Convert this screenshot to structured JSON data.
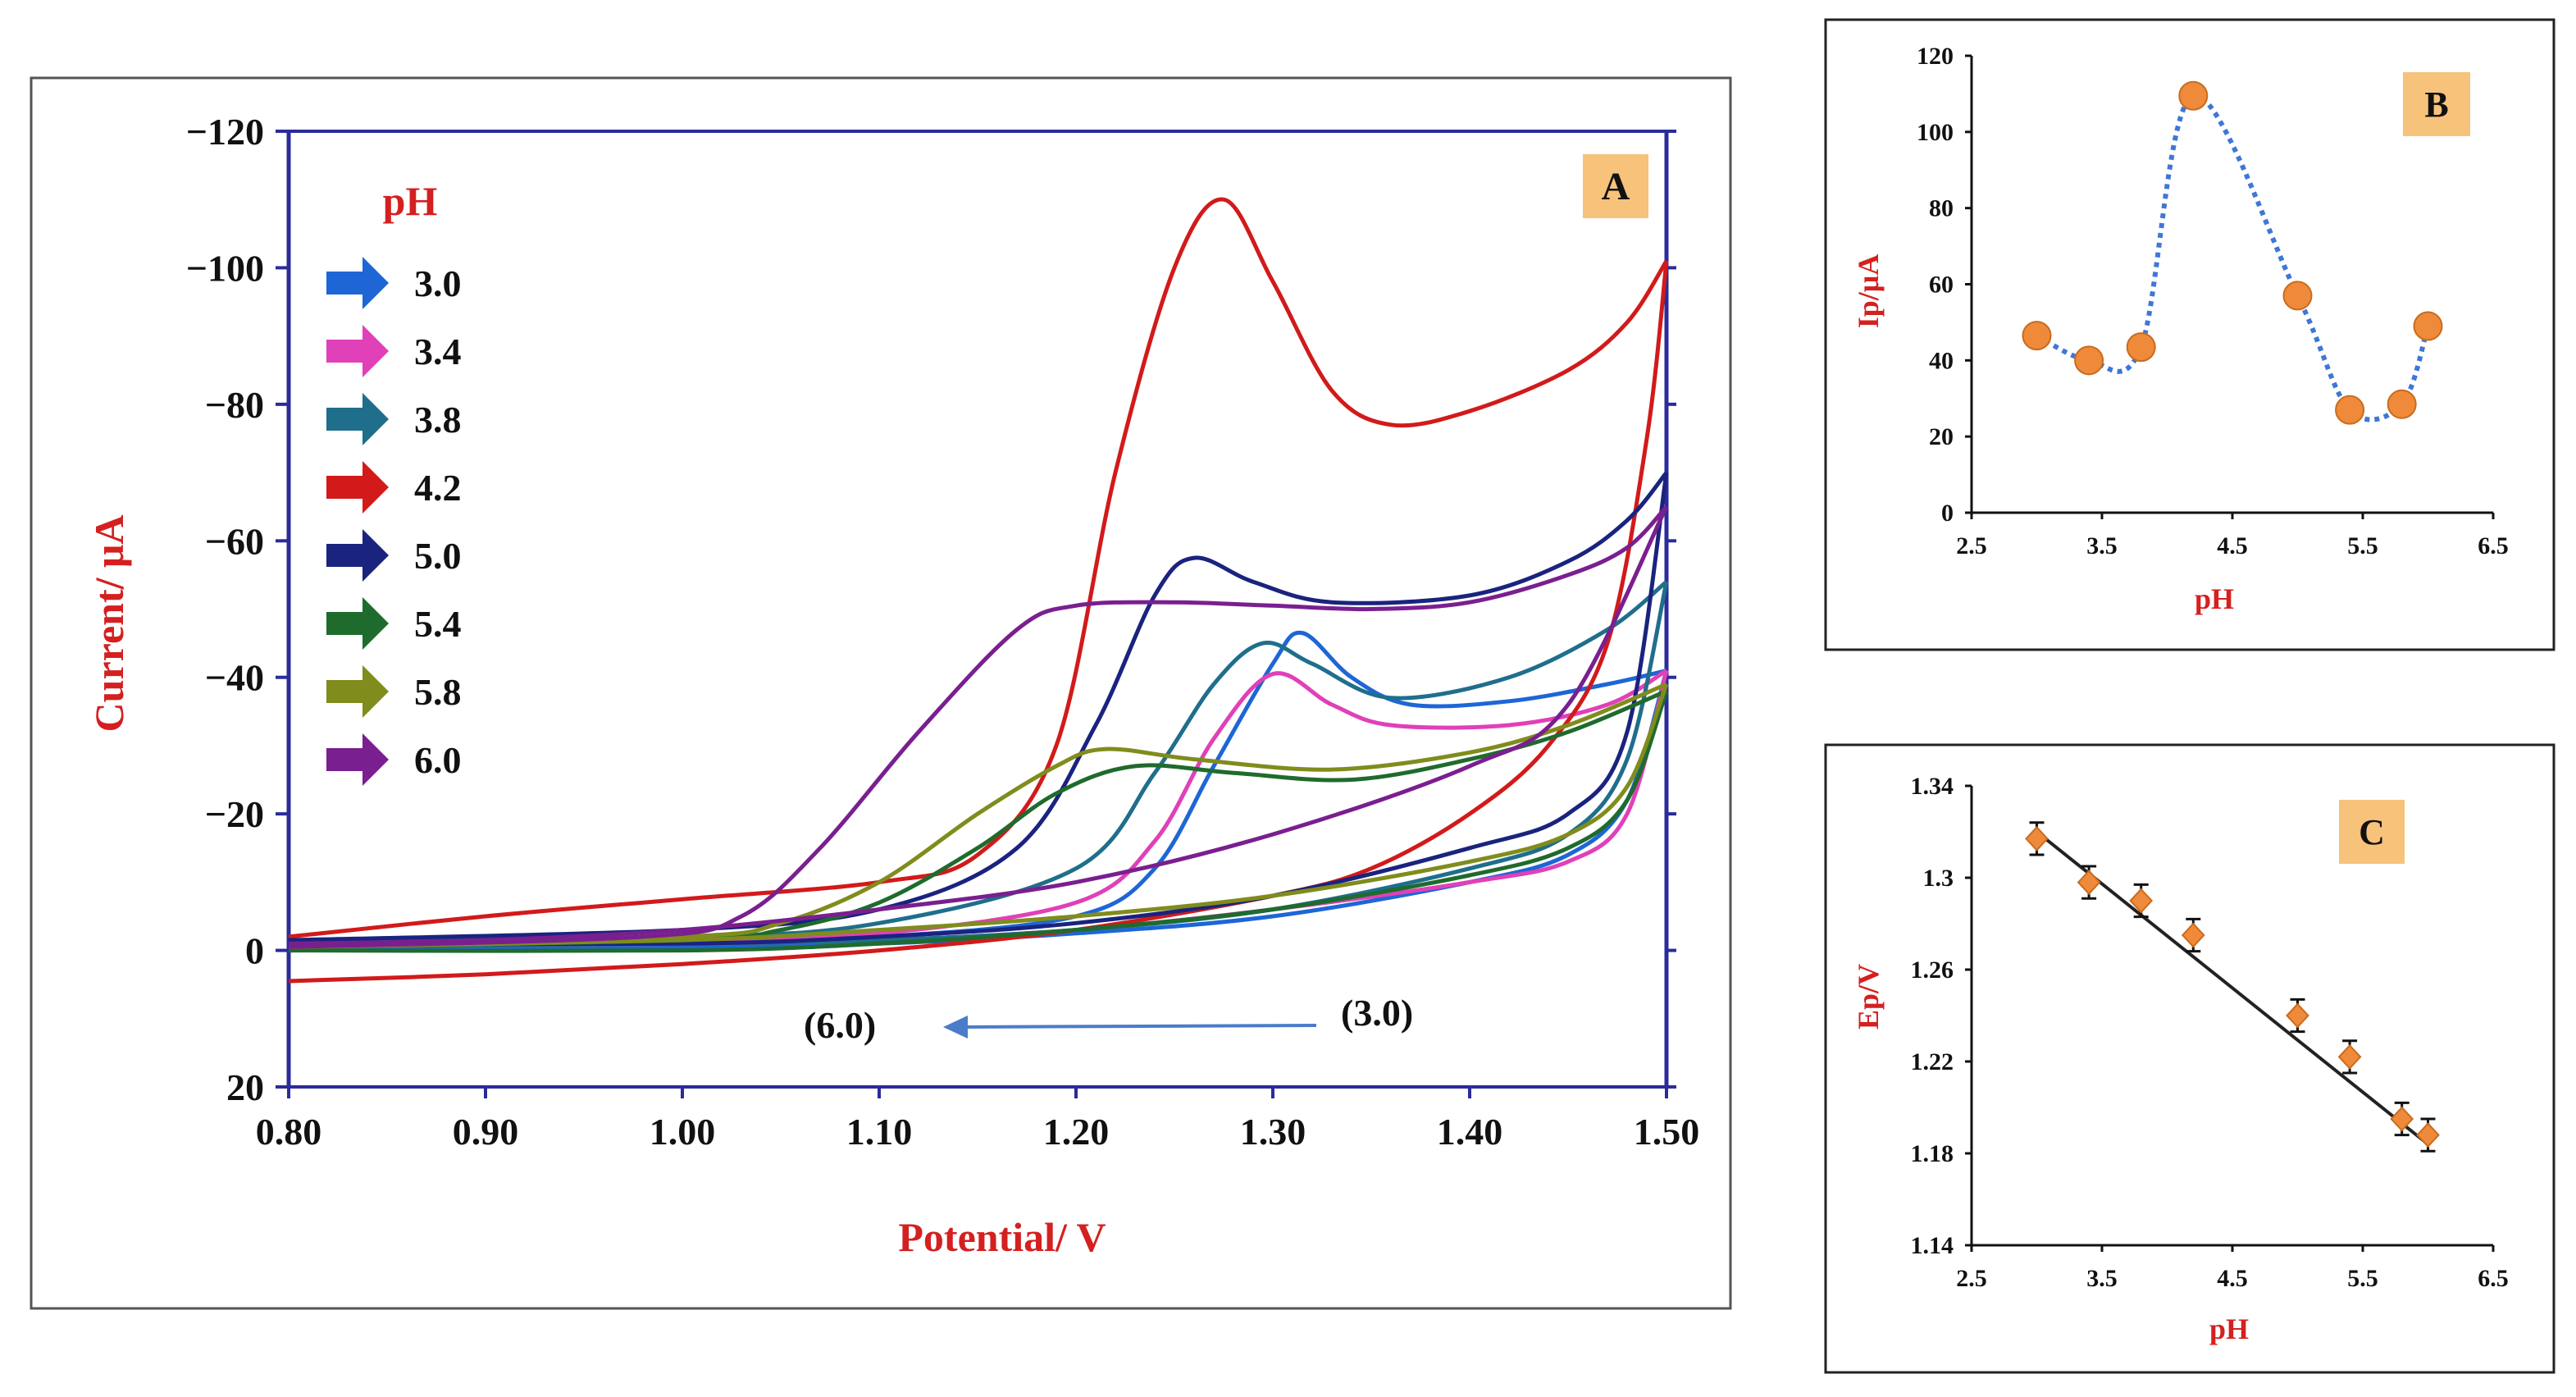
{
  "colors": {
    "label_red": "#d42020",
    "axis_blue": "#2b2b9b",
    "badge_fill": "#f7c27a",
    "marker_orange": "#ee8a3a",
    "dotted_blue": "#3e77d6",
    "arrow_blue": "#4a7cc9",
    "fit_line": "#222222"
  },
  "chart_data": [
    {
      "id": "A",
      "type": "line",
      "badge": "A",
      "xlabel": "Potential/ V",
      "ylabel": "Current/ μA",
      "xlim": [
        0.8,
        1.5
      ],
      "ylim": [
        20,
        -120
      ],
      "y_inverted": true,
      "x_ticks": [
        "0.80",
        "0.90",
        "1.00",
        "1.10",
        "1.20",
        "1.30",
        "1.40",
        "1.50"
      ],
      "y_ticks": [
        "-120",
        "-100",
        "-80",
        "-60",
        "-40",
        "-20",
        "0",
        "20"
      ],
      "legend_title": "pH",
      "annotation": {
        "from": "(3.0)",
        "to": "(6.0)"
      },
      "series": [
        {
          "name": "3.0",
          "color": "#1e66d6",
          "peak_E": 1.315,
          "peak_I": -46.5,
          "fwd": [
            [
              0.8,
              -1
            ],
            [
              1.0,
              -1.5
            ],
            [
              1.1,
              -2
            ],
            [
              1.2,
              -5
            ],
            [
              1.24,
              -12
            ],
            [
              1.27,
              -27
            ],
            [
              1.3,
              -42
            ],
            [
              1.315,
              -46.5
            ],
            [
              1.34,
              -40
            ],
            [
              1.37,
              -36
            ],
            [
              1.42,
              -36.5
            ],
            [
              1.47,
              -39
            ],
            [
              1.5,
              -41
            ]
          ],
          "rev": [
            [
              1.5,
              -41
            ],
            [
              1.48,
              -22
            ],
            [
              1.45,
              -14
            ],
            [
              1.4,
              -10
            ],
            [
              1.3,
              -5
            ],
            [
              1.2,
              -2.5
            ],
            [
              1.1,
              -1
            ],
            [
              1.0,
              -0.5
            ],
            [
              0.8,
              0
            ]
          ]
        },
        {
          "name": "3.4",
          "color": "#e040b8",
          "peak_E": 1.3,
          "peak_I": -40.5,
          "fwd": [
            [
              0.8,
              -1
            ],
            [
              1.0,
              -1.5
            ],
            [
              1.1,
              -2.5
            ],
            [
              1.2,
              -7
            ],
            [
              1.24,
              -16
            ],
            [
              1.27,
              -31
            ],
            [
              1.3,
              -40.5
            ],
            [
              1.33,
              -36
            ],
            [
              1.36,
              -33
            ],
            [
              1.42,
              -33
            ],
            [
              1.47,
              -36
            ],
            [
              1.5,
              -41
            ]
          ],
          "rev": [
            [
              1.5,
              -41
            ],
            [
              1.48,
              -20
            ],
            [
              1.45,
              -13
            ],
            [
              1.4,
              -10
            ],
            [
              1.3,
              -6
            ],
            [
              1.2,
              -3
            ],
            [
              1.1,
              -1.5
            ],
            [
              1.0,
              -1
            ],
            [
              0.8,
              -0.5
            ]
          ]
        },
        {
          "name": "3.8",
          "color": "#1f6e8c",
          "peak_E": 1.295,
          "peak_I": -45,
          "fwd": [
            [
              0.8,
              -1.5
            ],
            [
              1.0,
              -2
            ],
            [
              1.1,
              -4
            ],
            [
              1.2,
              -12
            ],
            [
              1.24,
              -26
            ],
            [
              1.27,
              -39
            ],
            [
              1.295,
              -45
            ],
            [
              1.32,
              -42
            ],
            [
              1.36,
              -37
            ],
            [
              1.42,
              -40
            ],
            [
              1.47,
              -47
            ],
            [
              1.5,
              -54
            ]
          ],
          "rev": [
            [
              1.5,
              -54
            ],
            [
              1.48,
              -28
            ],
            [
              1.45,
              -17
            ],
            [
              1.4,
              -12
            ],
            [
              1.3,
              -6
            ],
            [
              1.2,
              -3
            ],
            [
              1.1,
              -1.5
            ],
            [
              1.0,
              -1
            ],
            [
              0.8,
              -0.5
            ]
          ]
        },
        {
          "name": "4.2",
          "color": "#d21a1a",
          "peak_E": 1.275,
          "peak_I": -110,
          "fwd": [
            [
              0.8,
              -2
            ],
            [
              0.9,
              -5
            ],
            [
              1.0,
              -7.5
            ],
            [
              1.1,
              -10
            ],
            [
              1.15,
              -14
            ],
            [
              1.19,
              -30
            ],
            [
              1.22,
              -70
            ],
            [
              1.25,
              -100
            ],
            [
              1.275,
              -110
            ],
            [
              1.3,
              -98
            ],
            [
              1.33,
              -82
            ],
            [
              1.36,
              -77
            ],
            [
              1.4,
              -79
            ],
            [
              1.45,
              -85
            ],
            [
              1.48,
              -92
            ],
            [
              1.5,
              -101
            ]
          ],
          "rev": [
            [
              1.5,
              -101
            ],
            [
              1.49,
              -75
            ],
            [
              1.47,
              -45
            ],
            [
              1.44,
              -30
            ],
            [
              1.4,
              -20
            ],
            [
              1.35,
              -12
            ],
            [
              1.3,
              -8
            ],
            [
              1.2,
              -3
            ],
            [
              1.1,
              0
            ],
            [
              1.0,
              2
            ],
            [
              0.9,
              3.5
            ],
            [
              0.8,
              4.5
            ]
          ]
        },
        {
          "name": "5.0",
          "color": "#1a237e",
          "peak_E": 1.26,
          "peak_I": -57.5,
          "fwd": [
            [
              0.8,
              -1.5
            ],
            [
              1.0,
              -3
            ],
            [
              1.1,
              -6
            ],
            [
              1.17,
              -15
            ],
            [
              1.21,
              -33
            ],
            [
              1.24,
              -52
            ],
            [
              1.26,
              -57.5
            ],
            [
              1.29,
              -54
            ],
            [
              1.33,
              -51
            ],
            [
              1.4,
              -52
            ],
            [
              1.45,
              -57
            ],
            [
              1.48,
              -63
            ],
            [
              1.5,
              -70
            ]
          ],
          "rev": [
            [
              1.5,
              -70
            ],
            [
              1.48,
              -32
            ],
            [
              1.45,
              -20
            ],
            [
              1.4,
              -15
            ],
            [
              1.3,
              -8
            ],
            [
              1.2,
              -4
            ],
            [
              1.1,
              -2
            ],
            [
              1.0,
              -1
            ],
            [
              0.8,
              -1
            ]
          ]
        },
        {
          "name": "5.4",
          "color": "#1f6b2d",
          "peak_E": 1.23,
          "peak_I": -27,
          "fwd": [
            [
              0.8,
              -0.5
            ],
            [
              1.0,
              -1.5
            ],
            [
              1.05,
              -3
            ],
            [
              1.1,
              -7
            ],
            [
              1.15,
              -15
            ],
            [
              1.19,
              -23
            ],
            [
              1.23,
              -27
            ],
            [
              1.28,
              -26
            ],
            [
              1.34,
              -25
            ],
            [
              1.4,
              -28
            ],
            [
              1.45,
              -32
            ],
            [
              1.5,
              -38
            ]
          ],
          "rev": [
            [
              1.5,
              -38
            ],
            [
              1.48,
              -22
            ],
            [
              1.45,
              -15
            ],
            [
              1.4,
              -11
            ],
            [
              1.3,
              -6
            ],
            [
              1.2,
              -3
            ],
            [
              1.1,
              -1
            ],
            [
              1.0,
              0
            ],
            [
              0.8,
              0
            ]
          ]
        },
        {
          "name": "5.8",
          "color": "#808c1c",
          "peak_E": 1.215,
          "peak_I": -29.5,
          "fwd": [
            [
              0.8,
              -0.5
            ],
            [
              1.0,
              -2
            ],
            [
              1.05,
              -4
            ],
            [
              1.1,
              -10
            ],
            [
              1.15,
              -20
            ],
            [
              1.19,
              -27
            ],
            [
              1.215,
              -29.5
            ],
            [
              1.26,
              -28
            ],
            [
              1.33,
              -26.5
            ],
            [
              1.4,
              -29
            ],
            [
              1.45,
              -33
            ],
            [
              1.5,
              -39
            ]
          ],
          "rev": [
            [
              1.5,
              -39
            ],
            [
              1.48,
              -24
            ],
            [
              1.45,
              -17
            ],
            [
              1.4,
              -13
            ],
            [
              1.3,
              -8
            ],
            [
              1.2,
              -5
            ],
            [
              1.1,
              -3
            ],
            [
              1.0,
              -1.5
            ],
            [
              0.8,
              -0.5
            ]
          ]
        },
        {
          "name": "6.0",
          "color": "#7a1f8f",
          "peak_E": 1.2,
          "peak_I": -50.5,
          "fwd": [
            [
              0.8,
              -0.5
            ],
            [
              0.98,
              -2
            ],
            [
              1.03,
              -5
            ],
            [
              1.07,
              -15
            ],
            [
              1.12,
              -32
            ],
            [
              1.17,
              -47
            ],
            [
              1.2,
              -50.5
            ],
            [
              1.25,
              -51
            ],
            [
              1.3,
              -50.5
            ],
            [
              1.35,
              -50
            ],
            [
              1.4,
              -51
            ],
            [
              1.45,
              -55
            ],
            [
              1.48,
              -59
            ],
            [
              1.5,
              -65
            ]
          ],
          "rev": [
            [
              1.5,
              -65
            ],
            [
              1.45,
              -36
            ],
            [
              1.4,
              -27
            ],
            [
              1.3,
              -17
            ],
            [
              1.2,
              -10
            ],
            [
              1.1,
              -6
            ],
            [
              1.0,
              -3
            ],
            [
              0.9,
              -1.5
            ],
            [
              0.8,
              -1
            ]
          ]
        }
      ]
    },
    {
      "id": "B",
      "type": "line",
      "badge": "B",
      "xlabel": "pH",
      "ylabel": "Ip/μA",
      "xlim": [
        2.5,
        6.5
      ],
      "ylim": [
        0,
        120
      ],
      "x_ticks": [
        "2.5",
        "3.5",
        "4.5",
        "5.5",
        "6.5"
      ],
      "y_ticks": [
        "0",
        "20",
        "40",
        "60",
        "80",
        "100",
        "120"
      ],
      "x": [
        3.0,
        3.4,
        3.8,
        4.2,
        5.0,
        5.4,
        5.8,
        6.0
      ],
      "values": [
        46.5,
        40.0,
        43.5,
        109.5,
        57.0,
        27.0,
        28.5,
        49.0
      ]
    },
    {
      "id": "C",
      "type": "scatter",
      "badge": "C",
      "xlabel": "pH",
      "ylabel": "Ep/V",
      "xlim": [
        2.5,
        6.5
      ],
      "ylim": [
        1.14,
        1.34
      ],
      "x_ticks": [
        "2.5",
        "3.5",
        "4.5",
        "5.5",
        "6.5"
      ],
      "y_ticks": [
        "1.14",
        "1.18",
        "1.22",
        "1.26",
        "1.3",
        "1.34"
      ],
      "x": [
        3.0,
        3.4,
        3.8,
        4.2,
        5.0,
        5.4,
        5.8,
        6.0
      ],
      "values": [
        1.317,
        1.298,
        1.29,
        1.275,
        1.24,
        1.222,
        1.195,
        1.188
      ],
      "error": 0.007,
      "fit": {
        "x": [
          3.0,
          6.0
        ],
        "y": [
          1.32,
          1.184
        ]
      }
    }
  ]
}
